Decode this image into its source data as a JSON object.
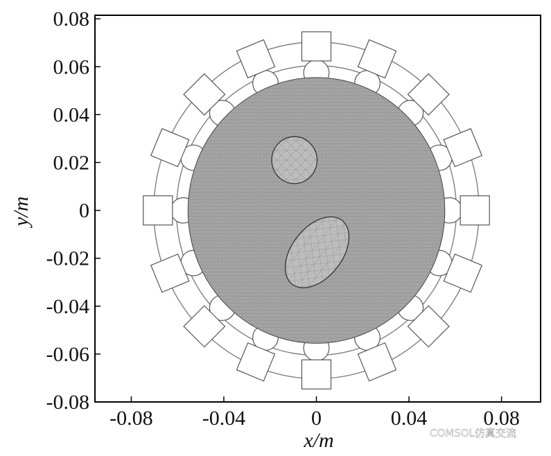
{
  "chart_data": {
    "type": "mesh",
    "xlabel": "x/m",
    "ylabel": "y/m",
    "xlim": [
      -0.0957,
      0.0969
    ],
    "ylim": [
      -0.08,
      0.0815
    ],
    "xticks": [
      -0.08,
      -0.04,
      0,
      0.04,
      0.08
    ],
    "yticks": [
      0.08,
      0.06,
      0.04,
      0.02,
      0,
      -0.02,
      -0.04,
      -0.06,
      -0.08
    ],
    "watermark": "COMSOL仿真交流"
  }
}
